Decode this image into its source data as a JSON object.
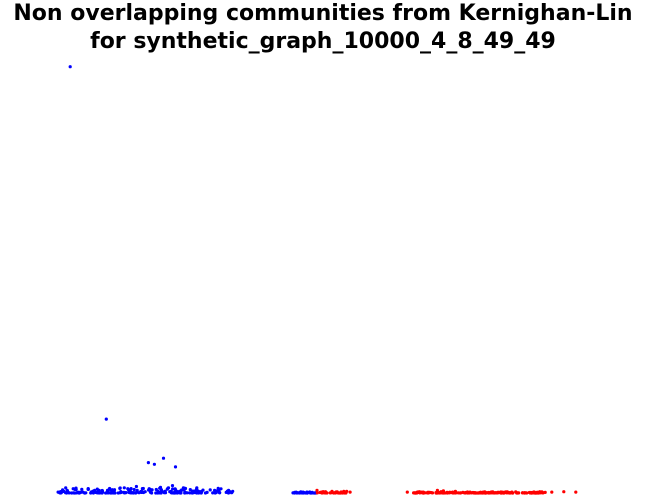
{
  "chart_data": {
    "type": "scatter",
    "title_lines": [
      "Non overlapping communities from Kernighan-Lin",
      "for synthetic_graph_10000_4_8_49_49"
    ],
    "xlabel": "",
    "ylabel": "",
    "axes_visible": false,
    "grid": false,
    "legend": "none",
    "xlim": [
      0,
      1
    ],
    "ylim": [
      0,
      1
    ],
    "series": [
      {
        "color": "#0000ff",
        "outliers": [
          [
            0.08,
            0.98
          ],
          [
            0.14,
            0.17
          ],
          [
            0.21,
            0.07
          ],
          [
            0.22,
            0.066
          ],
          [
            0.235,
            0.08
          ],
          [
            0.255,
            0.06
          ],
          [
            0.06,
            0.002
          ],
          [
            0.075,
            0.006
          ],
          [
            0.09,
            0.008
          ],
          [
            0.11,
            0.01
          ],
          [
            0.17,
            0.012
          ],
          [
            0.19,
            0.015
          ],
          [
            0.2,
            0.01
          ],
          [
            0.23,
            0.013
          ],
          [
            0.25,
            0.017
          ],
          [
            0.27,
            0.011
          ],
          [
            0.29,
            0.009
          ],
          [
            0.32,
            0.006
          ],
          [
            0.35,
            0.004
          ]
        ],
        "clusters": [
          {
            "x_range": [
              0.06,
              0.35
            ],
            "count": 220,
            "y_max": 0.012
          },
          {
            "x_range": [
              0.45,
              0.49
            ],
            "count": 40,
            "y_max": 0.003
          }
        ]
      },
      {
        "color": "#ff0000",
        "outliers": [
          [
            0.49,
            0.006
          ],
          [
            0.5,
            0.003
          ],
          [
            0.545,
            0.002
          ],
          [
            0.64,
            0.002
          ],
          [
            0.66,
            0.003
          ],
          [
            0.69,
            0.006
          ],
          [
            0.7,
            0.005
          ],
          [
            0.72,
            0.004
          ],
          [
            0.86,
            0.003
          ],
          [
            0.88,
            0.002
          ],
          [
            0.9,
            0.003
          ],
          [
            0.92,
            0.002
          ]
        ],
        "clusters": [
          {
            "x_range": [
              0.49,
              0.54
            ],
            "count": 40,
            "y_max": 0.004
          },
          {
            "x_range": [
              0.65,
              0.87
            ],
            "count": 220,
            "y_max": 0.003
          }
        ]
      }
    ]
  }
}
